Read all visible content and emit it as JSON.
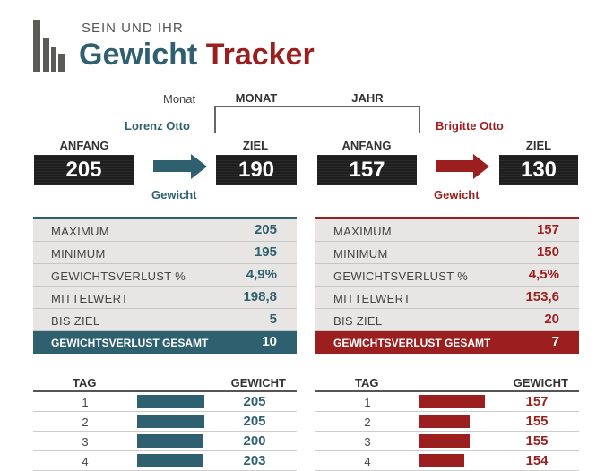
{
  "header": {
    "subtitle": "SEIN UND IHR",
    "title_part1": "Gewicht",
    "title_part2": "Tracker"
  },
  "period": {
    "current_label": "Monat",
    "options": [
      "MONAT",
      "JAHR"
    ]
  },
  "colors": {
    "his": "#2e6070",
    "hers": "#9b1f1f"
  },
  "icons": [
    "bar-chart-logo-icon",
    "arrow-right-icon"
  ],
  "him": {
    "name": "Lorenz Otto",
    "start_label": "ANFANG",
    "start": "205",
    "goal_label": "ZIEL",
    "goal": "190",
    "weight_label": "Gewicht",
    "stats": [
      {
        "label": "MAXIMUM",
        "value": "205"
      },
      {
        "label": "MINIMUM",
        "value": "195"
      },
      {
        "label": "GEWICHTSVERLUST %",
        "value": "4,9%"
      },
      {
        "label": "MITTELWERT",
        "value": "198,8"
      },
      {
        "label": "BIS ZIEL",
        "value": "5"
      }
    ],
    "total_label": "GEWICHTSVERLUST GESAMT",
    "total": "10",
    "table": {
      "col_day": "TAG",
      "col_weight": "GEWICHT",
      "rows": [
        {
          "day": "1",
          "weight": "205",
          "bar": 1.0
        },
        {
          "day": "2",
          "weight": "205",
          "bar": 1.0
        },
        {
          "day": "3",
          "weight": "200",
          "bar": 0.97
        },
        {
          "day": "4",
          "weight": "203",
          "bar": 0.99
        }
      ]
    }
  },
  "her": {
    "name": "Brigitte Otto",
    "start_label": "ANFANG",
    "start": "157",
    "goal_label": "ZIEL",
    "goal": "130",
    "weight_label": "Gewicht",
    "stats": [
      {
        "label": "MAXIMUM",
        "value": "157"
      },
      {
        "label": "MINIMUM",
        "value": "150"
      },
      {
        "label": "GEWICHTSVERLUST %",
        "value": "4,5%"
      },
      {
        "label": "MITTELWERT",
        "value": "153,6"
      },
      {
        "label": "BIS ZIEL",
        "value": "20"
      }
    ],
    "total_label": "GEWICHTSVERLUST GESAMT",
    "total": "7",
    "table": {
      "col_day": "TAG",
      "col_weight": "GEWICHT",
      "rows": [
        {
          "day": "1",
          "weight": "157",
          "bar": 0.97
        },
        {
          "day": "2",
          "weight": "155",
          "bar": 0.75
        },
        {
          "day": "3",
          "weight": "155",
          "bar": 0.75
        },
        {
          "day": "4",
          "weight": "154",
          "bar": 0.66
        }
      ]
    }
  }
}
